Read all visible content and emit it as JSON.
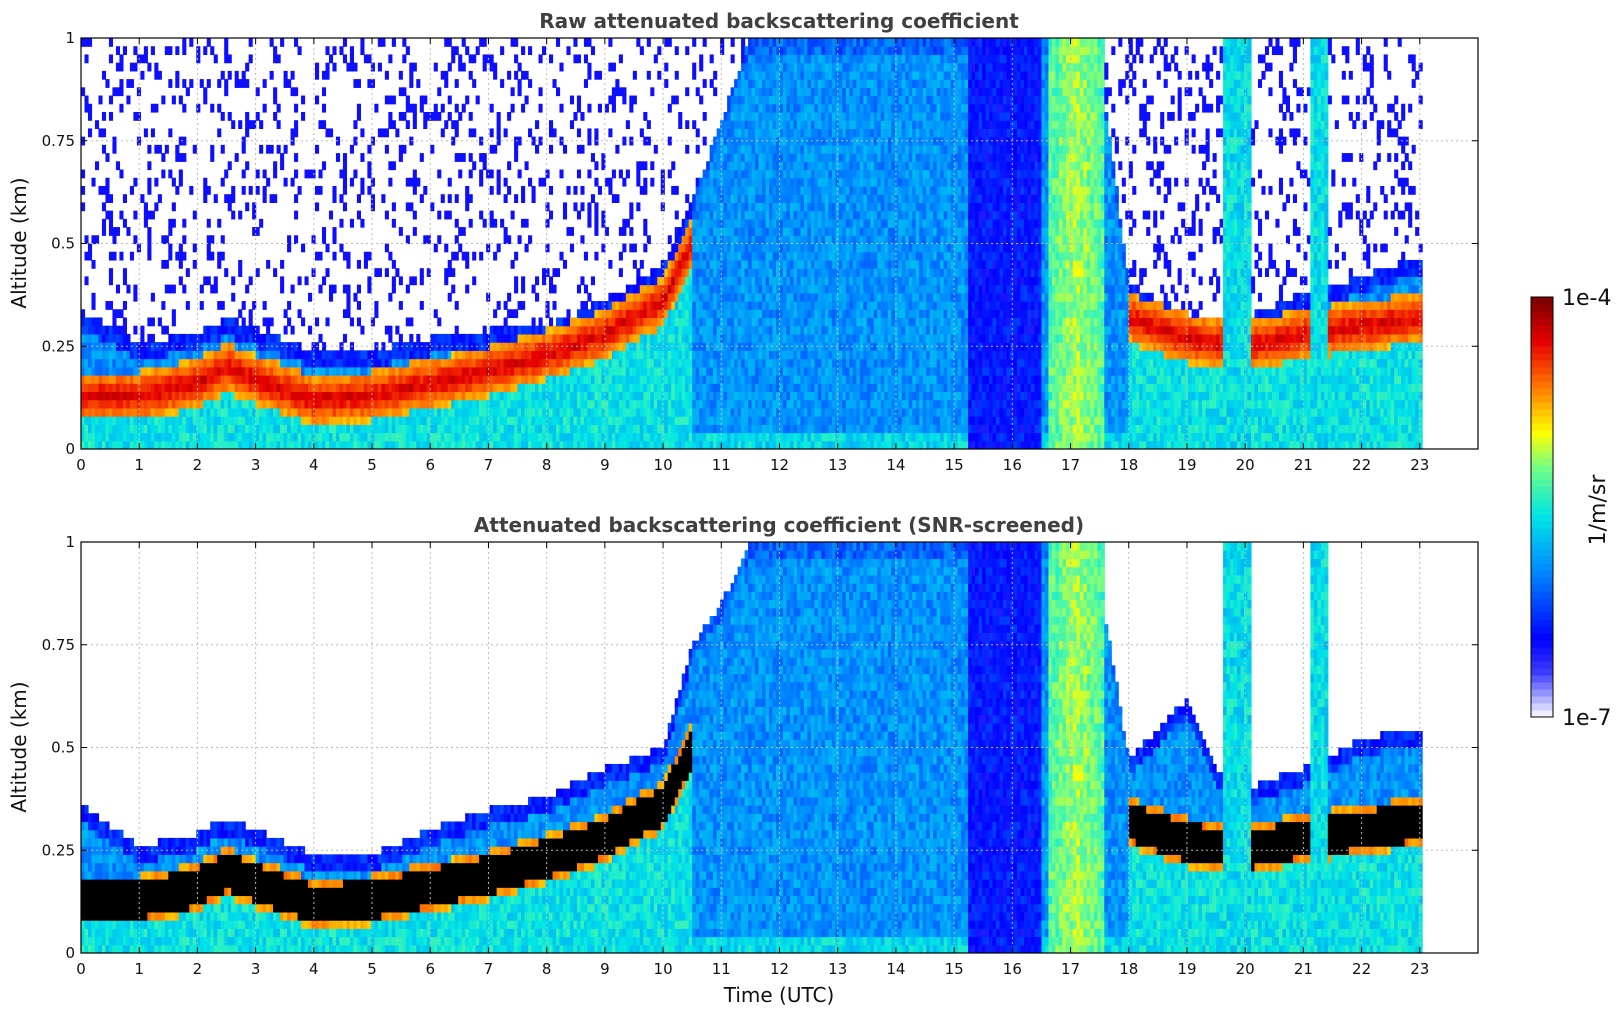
{
  "chart_data": [
    {
      "type": "heatmap",
      "id": "raw",
      "title": "Raw attenuated backscattering coefficient",
      "xlabel": "",
      "ylabel": "Altitude (km)",
      "xlim": [
        0,
        24
      ],
      "ylim": [
        0,
        1
      ],
      "xticks": [
        "0",
        "1",
        "2",
        "3",
        "4",
        "5",
        "6",
        "7",
        "8",
        "9",
        "10",
        "11",
        "12",
        "13",
        "14",
        "15",
        "16",
        "17",
        "18",
        "19",
        "20",
        "21",
        "22",
        "23"
      ],
      "yticks": [
        "0",
        "0.25",
        "0.5",
        "0.75",
        "1"
      ],
      "grid": true,
      "data_end_hour": 23,
      "description_of_field": "log10 attenuated backscatter (1/m/sr), range 1e-7..1e-4",
      "layer_top_km": [
        [
          0,
          0.33
        ],
        [
          1,
          0.26
        ],
        [
          2,
          0.28
        ],
        [
          2.5,
          0.32
        ],
        [
          3,
          0.29
        ],
        [
          4,
          0.24
        ],
        [
          5,
          0.24
        ],
        [
          6,
          0.27
        ],
        [
          7,
          0.29
        ],
        [
          8,
          0.3
        ],
        [
          9,
          0.36
        ],
        [
          10,
          0.45
        ],
        [
          10.5,
          0.6
        ],
        [
          11,
          0.8
        ],
        [
          11.5,
          1.0
        ],
        [
          16.5,
          1.0
        ],
        [
          17.5,
          0.95
        ],
        [
          18,
          0.4
        ],
        [
          19,
          0.33
        ],
        [
          20,
          0.32
        ],
        [
          21,
          0.38
        ],
        [
          22,
          0.42
        ],
        [
          23,
          0.47
        ]
      ],
      "aerosol_core_km": [
        [
          0,
          0.13
        ],
        [
          1,
          0.13
        ],
        [
          2,
          0.16
        ],
        [
          2.5,
          0.2
        ],
        [
          3,
          0.17
        ],
        [
          4,
          0.12
        ],
        [
          5,
          0.13
        ],
        [
          6,
          0.16
        ],
        [
          7,
          0.19
        ],
        [
          8,
          0.23
        ],
        [
          9,
          0.28
        ],
        [
          10,
          0.36
        ],
        [
          10.5,
          0.5
        ],
        [
          18,
          0.32
        ],
        [
          19,
          0.27
        ],
        [
          20,
          0.25
        ],
        [
          21,
          0.28
        ],
        [
          22,
          0.3
        ],
        [
          23,
          0.32
        ]
      ],
      "fog_columns": [
        [
          15.25,
          16.5,
          "dense-blue"
        ],
        [
          16.6,
          17.6,
          "cyan-green"
        ],
        [
          19.6,
          20.1,
          "cyan"
        ],
        [
          21.1,
          21.4,
          "cyan"
        ]
      ],
      "screened": false
    },
    {
      "type": "heatmap",
      "id": "screened",
      "title": "Attenuated backscattering coefficient (SNR-screened)",
      "xlabel": "Time (UTC)",
      "ylabel": "Altitude (km)",
      "xlim": [
        0,
        24
      ],
      "ylim": [
        0,
        1
      ],
      "xticks": [
        "0",
        "1",
        "2",
        "3",
        "4",
        "5",
        "6",
        "7",
        "8",
        "9",
        "10",
        "11",
        "12",
        "13",
        "14",
        "15",
        "16",
        "17",
        "18",
        "19",
        "20",
        "21",
        "22",
        "23"
      ],
      "yticks": [
        "0",
        "0.25",
        "0.5",
        "0.75",
        "1"
      ],
      "grid": true,
      "data_end_hour": 23,
      "description_of_field": "same field after SNR screening; saturated core shown black",
      "layer_top_km": [
        [
          0,
          0.36
        ],
        [
          1,
          0.26
        ],
        [
          2,
          0.29
        ],
        [
          2.5,
          0.33
        ],
        [
          3,
          0.3
        ],
        [
          4,
          0.24
        ],
        [
          5,
          0.24
        ],
        [
          6,
          0.3
        ],
        [
          7,
          0.35
        ],
        [
          8,
          0.38
        ],
        [
          9,
          0.45
        ],
        [
          10,
          0.5
        ],
        [
          10.5,
          0.75
        ],
        [
          11,
          0.85
        ],
        [
          11.5,
          1.0
        ],
        [
          16.5,
          1.0
        ],
        [
          17.5,
          0.9
        ],
        [
          18,
          0.47
        ],
        [
          19,
          0.62
        ],
        [
          19.5,
          0.45
        ],
        [
          20,
          0.4
        ],
        [
          21,
          0.45
        ],
        [
          22,
          0.52
        ],
        [
          23,
          0.55
        ]
      ],
      "aerosol_core_km": [
        [
          0,
          0.13
        ],
        [
          1,
          0.13
        ],
        [
          2,
          0.16
        ],
        [
          2.5,
          0.2
        ],
        [
          3,
          0.17
        ],
        [
          4,
          0.12
        ],
        [
          5,
          0.13
        ],
        [
          6,
          0.16
        ],
        [
          7,
          0.19
        ],
        [
          8,
          0.23
        ],
        [
          9,
          0.28
        ],
        [
          10,
          0.36
        ],
        [
          10.5,
          0.5
        ],
        [
          18,
          0.32
        ],
        [
          19,
          0.27
        ],
        [
          20,
          0.25
        ],
        [
          21,
          0.28
        ],
        [
          22,
          0.3
        ],
        [
          23,
          0.32
        ]
      ],
      "fog_columns": [
        [
          15.25,
          16.5,
          "dense-blue"
        ],
        [
          16.6,
          17.6,
          "cyan-green"
        ],
        [
          19.6,
          20.1,
          "cyan"
        ],
        [
          21.1,
          21.4,
          "cyan"
        ]
      ],
      "screened": true
    }
  ],
  "colorbar": {
    "max_label": "1e-4",
    "min_label": "1e-7",
    "unit_label": "1/m/sr",
    "colormap": "jet",
    "stops": [
      "#eeeeff",
      "#0000ff",
      "#00aaff",
      "#00ffff",
      "#ffff00",
      "#ff6600",
      "#ff0000",
      "#800000"
    ]
  }
}
